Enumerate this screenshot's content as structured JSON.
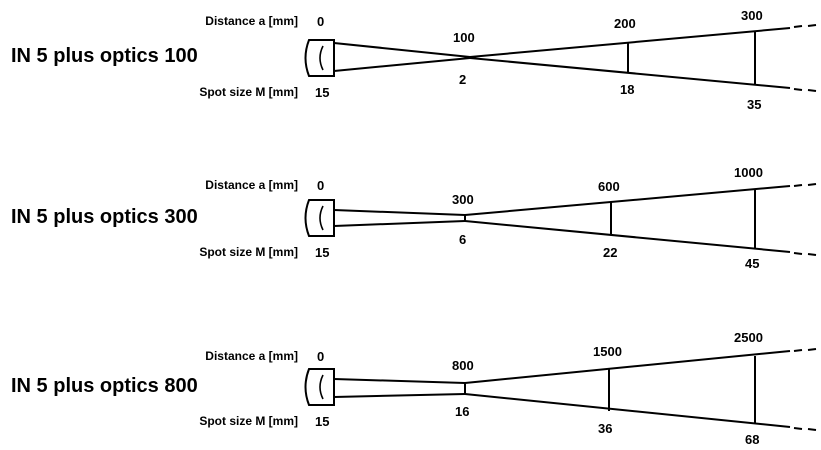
{
  "rows": [
    {
      "title": "IN 5 plus optics 100",
      "distance_label": "Distance a [mm]",
      "spot_label": "Spot size M [mm]",
      "distance_values": [
        "0",
        "100",
        "200",
        "300"
      ],
      "spot_values": [
        "15",
        "2",
        "18",
        "35"
      ]
    },
    {
      "title": "IN 5 plus optics 300",
      "distance_label": "Distance a [mm]",
      "spot_label": "Spot size M [mm]",
      "distance_values": [
        "0",
        "300",
        "600",
        "1000"
      ],
      "spot_values": [
        "15",
        "6",
        "22",
        "45"
      ]
    },
    {
      "title": "IN 5 plus optics 800",
      "distance_label": "Distance a [mm]",
      "spot_label": "Spot size M [mm]",
      "distance_values": [
        "0",
        "800",
        "1500",
        "2500"
      ],
      "spot_values": [
        "15",
        "16",
        "36",
        "68"
      ]
    }
  ],
  "colors": {
    "line": "#000000",
    "background": "#ffffff"
  }
}
